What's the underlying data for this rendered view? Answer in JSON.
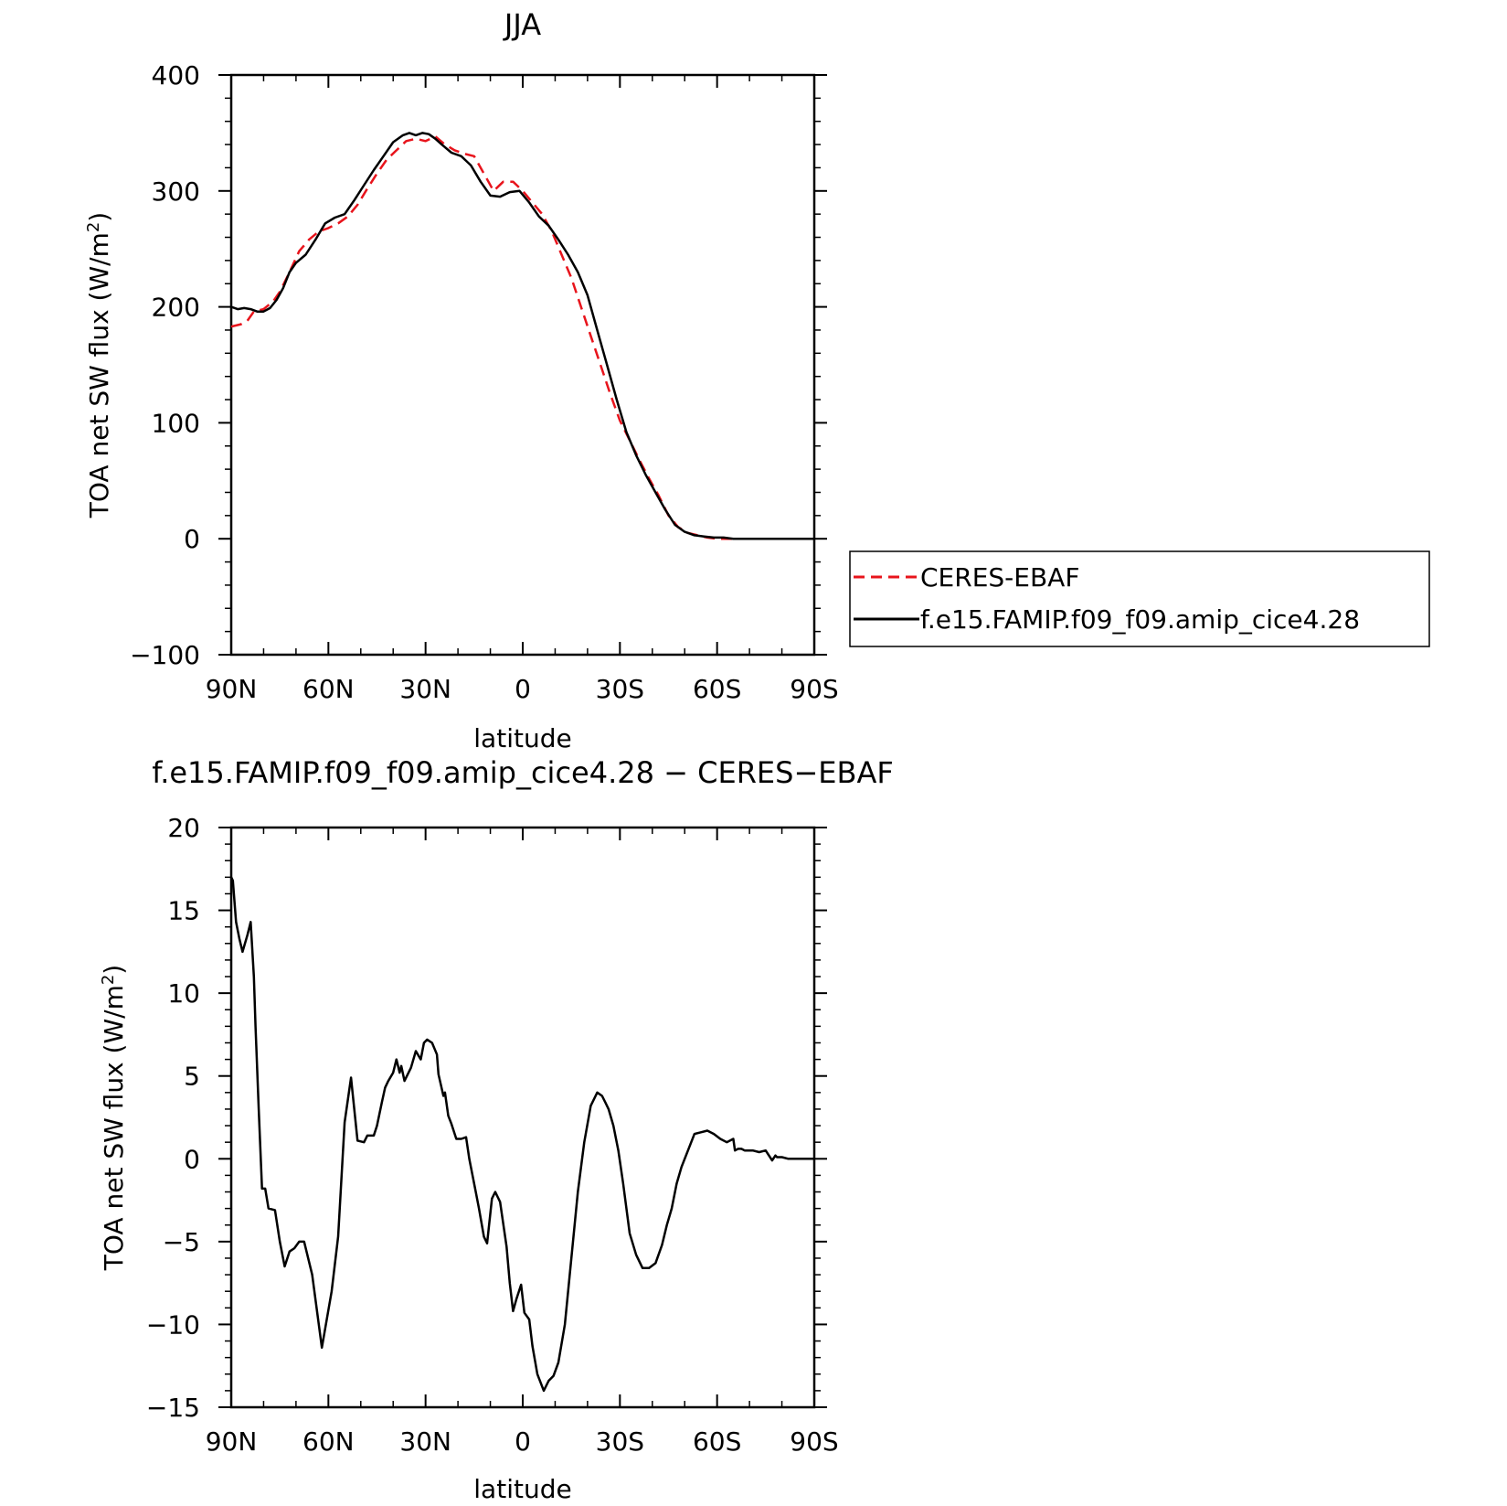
{
  "chart_data": [
    {
      "type": "line",
      "title": "JJA",
      "xlabel": "latitude",
      "ylabel": "TOA net SW flux (W/m",
      "ylabel_superscript": "2",
      "ylabel_suffix": ")",
      "xlim": [
        90,
        -90
      ],
      "ylim": [
        -100,
        400
      ],
      "xticks": [
        90,
        60,
        30,
        0,
        -30,
        -60,
        -90
      ],
      "xtick_labels": [
        "90N",
        "60N",
        "30N",
        "0",
        "30S",
        "60S",
        "90S"
      ],
      "yticks": [
        -100,
        0,
        100,
        200,
        300,
        400
      ],
      "ytick_labels": [
        "−100",
        "0",
        "100",
        "200",
        "300",
        "400"
      ],
      "grid": false,
      "legend": "right",
      "series": [
        {
          "name": "CERES-EBAF",
          "color": "#e8141c",
          "dash": "dashed",
          "x": [
            90,
            87,
            85,
            83,
            80,
            77,
            75,
            72,
            69,
            66,
            63,
            60,
            57,
            54,
            51,
            48,
            45,
            42,
            39,
            36,
            33,
            30,
            27,
            24,
            21,
            18,
            15,
            12,
            9,
            6,
            3,
            0,
            -3,
            -6,
            -9,
            -12,
            -15,
            -18,
            -21,
            -24,
            -27,
            -30,
            -33,
            -36,
            -39,
            -42,
            -45,
            -48,
            -51,
            -54,
            -57,
            -60,
            -63,
            -66,
            -69,
            -72,
            -75,
            -78,
            -81,
            -84,
            -87,
            -90
          ],
          "y": [
            183,
            185,
            188,
            196,
            198,
            205,
            213,
            230,
            248,
            258,
            265,
            268,
            272,
            278,
            288,
            302,
            315,
            327,
            335,
            343,
            345,
            343,
            347,
            340,
            335,
            332,
            330,
            315,
            300,
            308,
            308,
            300,
            290,
            280,
            265,
            245,
            225,
            200,
            175,
            150,
            125,
            102,
            85,
            68,
            52,
            37,
            20,
            10,
            5,
            3,
            1,
            0,
            0,
            0,
            0,
            0,
            0,
            0,
            0,
            0,
            0,
            0
          ]
        },
        {
          "name": "f.e15.FAMIP.f09_f09.amip_cice4.28",
          "color": "#000000",
          "dash": "solid",
          "x": [
            90,
            88,
            86,
            84,
            82,
            80,
            78,
            76,
            74,
            72,
            70,
            67,
            64,
            61,
            58,
            55,
            52,
            49,
            46,
            43,
            40,
            37,
            35,
            33,
            31,
            29,
            27,
            25,
            22,
            19,
            16,
            13,
            10,
            7,
            4,
            1,
            -2,
            -5,
            -8,
            -11,
            -14,
            -17,
            -20,
            -23,
            -26,
            -29,
            -32,
            -35,
            -38,
            -41,
            -44,
            -47,
            -50,
            -53,
            -56,
            -59,
            -62,
            -65,
            -68,
            -71,
            -74,
            -77,
            -80,
            -83,
            -87,
            -90
          ],
          "y": [
            200,
            198,
            199,
            198,
            196,
            196,
            199,
            206,
            216,
            230,
            238,
            245,
            258,
            272,
            277,
            280,
            292,
            305,
            318,
            330,
            342,
            348,
            350,
            348,
            350,
            349,
            345,
            340,
            333,
            330,
            322,
            308,
            296,
            295,
            299,
            300,
            290,
            278,
            270,
            258,
            245,
            230,
            210,
            180,
            150,
            120,
            92,
            72,
            55,
            40,
            25,
            12,
            6,
            3,
            2,
            1,
            1,
            0,
            0,
            0,
            0,
            0,
            0,
            0,
            0,
            0
          ]
        }
      ]
    },
    {
      "type": "line",
      "title": "f.e15.FAMIP.f09_f09.amip_cice4.28 − CERES−EBAF",
      "xlabel": "latitude",
      "ylabel": "TOA net SW flux (W/m",
      "ylabel_superscript": "2",
      "ylabel_suffix": ")",
      "xlim": [
        90,
        -90
      ],
      "ylim": [
        -15,
        20
      ],
      "xticks": [
        90,
        60,
        30,
        0,
        -30,
        -60,
        -90
      ],
      "xtick_labels": [
        "90N",
        "60N",
        "30N",
        "0",
        "30S",
        "60S",
        "90S"
      ],
      "yticks": [
        -15,
        -10,
        -5,
        0,
        5,
        10,
        15,
        20
      ],
      "ytick_labels": [
        "−15",
        "−10",
        "−5",
        "0",
        "5",
        "10",
        "15",
        "20"
      ],
      "grid": false,
      "series": [
        {
          "color": "#000000",
          "dash": "solid",
          "x": [
            90,
            89.5,
            88.5,
            87.5,
            86.5,
            85,
            84,
            83,
            82.5,
            81.5,
            80.5,
            79.5,
            78.5,
            76.5,
            75,
            73.5,
            72,
            70.5,
            69,
            67.5,
            65,
            62,
            59,
            57,
            55,
            53,
            51,
            49,
            48,
            46,
            45,
            43.5,
            42.5,
            41.5,
            40,
            39,
            38,
            37.5,
            36.5,
            34.5,
            33,
            31.5,
            30.5,
            29.5,
            28,
            26.5,
            26,
            24.5,
            24,
            23,
            22,
            20.5,
            19,
            17.5,
            16.5,
            14.5,
            13.5,
            12,
            11,
            9.5,
            8.5,
            7,
            5,
            4,
            3,
            2,
            0.5,
            -0.5,
            -2,
            -3,
            -4.5,
            -6.5,
            -8,
            -9.5,
            -11,
            -13,
            -15,
            -17,
            -19,
            -21,
            -23,
            -24.5,
            -25.5,
            -26.5,
            -28,
            -29.5,
            -31,
            -33,
            -35,
            -37,
            -39,
            -41,
            -43,
            -44.5,
            -46,
            -47.5,
            -49,
            -51,
            -53,
            -55,
            -57,
            -59,
            -61,
            -63,
            -65,
            -65.5,
            -66.5,
            -67.5,
            -68.5,
            -69.5,
            -71,
            -73,
            -75,
            -77,
            -78,
            -78.5,
            -80,
            -82,
            -84,
            -87,
            -90
          ],
          "y": [
            17.0,
            16.8,
            14.3,
            13.3,
            12.5,
            13.5,
            14.3,
            11.0,
            8.0,
            3.0,
            -1.8,
            -1.8,
            -3.0,
            -3.1,
            -5.0,
            -6.5,
            -5.6,
            -5.4,
            -5.0,
            -5.0,
            -7.0,
            -11.4,
            -8.0,
            -4.7,
            2.2,
            4.9,
            1.1,
            1.0,
            1.4,
            1.4,
            2.0,
            3.4,
            4.3,
            4.7,
            5.2,
            6.0,
            5.2,
            5.6,
            4.7,
            5.5,
            6.5,
            6.0,
            7.0,
            7.2,
            7.0,
            6.3,
            5.1,
            3.8,
            4.0,
            2.6,
            2.1,
            1.2,
            1.2,
            1.3,
            0.0,
            -2.0,
            -3.0,
            -4.7,
            -5.1,
            -2.4,
            -2.0,
            -2.6,
            -5.3,
            -7.5,
            -9.2,
            -8.5,
            -7.6,
            -9.3,
            -9.7,
            -11.3,
            -13.0,
            -14.0,
            -13.4,
            -13.1,
            -12.3,
            -10.0,
            -6.0,
            -2.0,
            1.0,
            3.2,
            4.0,
            3.8,
            3.4,
            3.0,
            2.0,
            0.5,
            -1.5,
            -4.5,
            -5.8,
            -6.6,
            -6.6,
            -6.3,
            -5.2,
            -4.0,
            -3.0,
            -1.5,
            -0.5,
            0.5,
            1.5,
            1.6,
            1.7,
            1.5,
            1.2,
            1.0,
            1.2,
            0.5,
            0.6,
            0.6,
            0.5,
            0.5,
            0.5,
            0.4,
            0.5,
            -0.1,
            0.2,
            0.1,
            0.1,
            0.0,
            0.0,
            0.0,
            0.0
          ]
        }
      ]
    }
  ]
}
